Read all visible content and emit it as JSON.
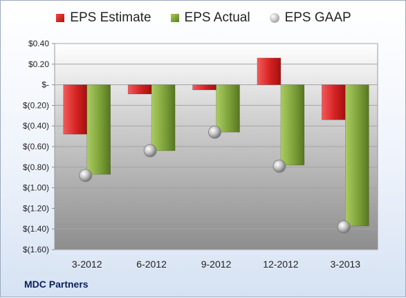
{
  "company_label": "MDC Partners",
  "colors": {
    "estimate": "#d42222",
    "actual": "#7ea23a",
    "gaap": "#b8b8b8"
  },
  "chart_data": {
    "type": "bar",
    "categories": [
      "3-2012",
      "6-2012",
      "9-2012",
      "12-2012",
      "3-2013"
    ],
    "series": [
      {
        "name": "EPS Estimate",
        "kind": "bar",
        "values": [
          -0.48,
          -0.09,
          -0.05,
          0.26,
          -0.34
        ]
      },
      {
        "name": "EPS Actual",
        "kind": "bar",
        "values": [
          -0.87,
          -0.64,
          -0.46,
          -0.78,
          -1.37
        ]
      },
      {
        "name": "EPS GAAP",
        "kind": "marker",
        "values": [
          -0.88,
          -0.64,
          -0.46,
          -0.79,
          -1.38
        ]
      }
    ],
    "ylim": [
      -1.6,
      0.4
    ],
    "yticks": [
      0.4,
      0.2,
      0,
      -0.2,
      -0.4,
      -0.6,
      -0.8,
      -1.0,
      -1.2,
      -1.4,
      -1.6
    ],
    "ytick_labels": [
      "$0.40",
      "$0.20",
      "$-",
      "$(0.20)",
      "$(0.40)",
      "$(0.60)",
      "$(0.80)",
      "$(1.00)",
      "$(1.20)",
      "$(1.40)",
      "$(1.60)"
    ],
    "grid": true,
    "legend_position": "top"
  }
}
